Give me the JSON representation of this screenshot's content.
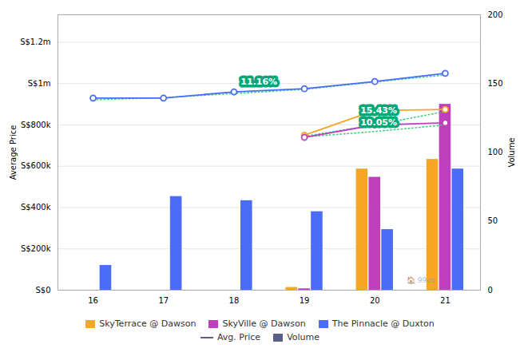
{
  "chart_data": {
    "type": "bar_line",
    "x": [
      16,
      17,
      18,
      19,
      20,
      21
    ],
    "xlim": [
      15.5,
      21.5
    ],
    "xticks": [
      16,
      17,
      18,
      19,
      20,
      21
    ],
    "ylabel": "Average Price",
    "ylim": [
      0,
      1333333
    ],
    "yticks": [
      {
        "value": 0,
        "label": "S$0"
      },
      {
        "value": 200000,
        "label": "S$200k"
      },
      {
        "value": 400000,
        "label": "S$400k"
      },
      {
        "value": 600000,
        "label": "S$600k"
      },
      {
        "value": 800000,
        "label": "S$800k"
      },
      {
        "value": 1000000,
        "label": "S$1m"
      },
      {
        "value": 1200000,
        "label": "S$1.2m"
      }
    ],
    "y2label": "Volume",
    "y2lim": [
      0,
      200
    ],
    "y2ticks": [
      0,
      50,
      100,
      150,
      200
    ],
    "grid": true,
    "legend": "bottom",
    "legend_keys": [
      {
        "name": "Avg. Price",
        "type": "line",
        "color": "#5A5F8A"
      },
      {
        "name": "Volume",
        "type": "bar",
        "color": "#5A5F8A"
      }
    ],
    "series": [
      {
        "name": "SkyTerrace @ Dawson",
        "type": "bar",
        "axis": "y2",
        "color": "#F5A623",
        "values": [
          0,
          0,
          0,
          2,
          88,
          95
        ]
      },
      {
        "name": "SkyVille @ Dawson",
        "type": "bar",
        "axis": "y2",
        "color": "#BF3FBF",
        "values": [
          0,
          0,
          0,
          1,
          82,
          135
        ]
      },
      {
        "name": "The Pinnacle @ Duxton",
        "type": "bar",
        "axis": "y2",
        "color": "#4A6CF7",
        "values": [
          18,
          68,
          65,
          57,
          44,
          88
        ]
      },
      {
        "type": "line",
        "line_style": "dotted",
        "color": "#2ECC71",
        "values": [
          922000,
          932000,
          952000,
          972000,
          1008000,
          1042000
        ]
      },
      {
        "type": "line",
        "line_style": "dotted",
        "color": "#2ECC71",
        "values": [
          null,
          null,
          null,
          745000,
          800000,
          865000
        ]
      },
      {
        "type": "line",
        "line_style": "dotted",
        "color": "#2ECC71",
        "values": [
          null,
          null,
          null,
          742000,
          768000,
          800000
        ]
      },
      {
        "name": "The Pinnacle @ Duxton",
        "type": "line",
        "line_style": "solid",
        "marker": "o",
        "color": "#4A6CF7",
        "values": [
          930000,
          930000,
          960000,
          975000,
          1010000,
          1050000
        ]
      },
      {
        "name": "SkyTerrace @ Dawson",
        "type": "line",
        "line_style": "solid",
        "marker": "o",
        "color": "#F5A623",
        "values": [
          null,
          null,
          null,
          750000,
          870000,
          875000
        ]
      },
      {
        "name": "SkyVille @ Dawson",
        "type": "line",
        "line_style": "solid",
        "marker": "o",
        "color": "#BF3FBF",
        "values": [
          null,
          null,
          null,
          740000,
          800000,
          810000
        ]
      }
    ],
    "annotations": [
      {
        "text": "11.16%",
        "x": 18.05,
        "y": 985000,
        "background": "#00A878"
      },
      {
        "text": "15.43%",
        "x": 19.75,
        "y": 845000,
        "background": "#00A878"
      },
      {
        "text": "10.05%",
        "x": 19.75,
        "y": 785000,
        "background": "#00A878"
      },
      {
        "text": "🏠 99co",
        "x": 20.45,
        "y": 38000,
        "color": "#8899CC"
      }
    ]
  }
}
